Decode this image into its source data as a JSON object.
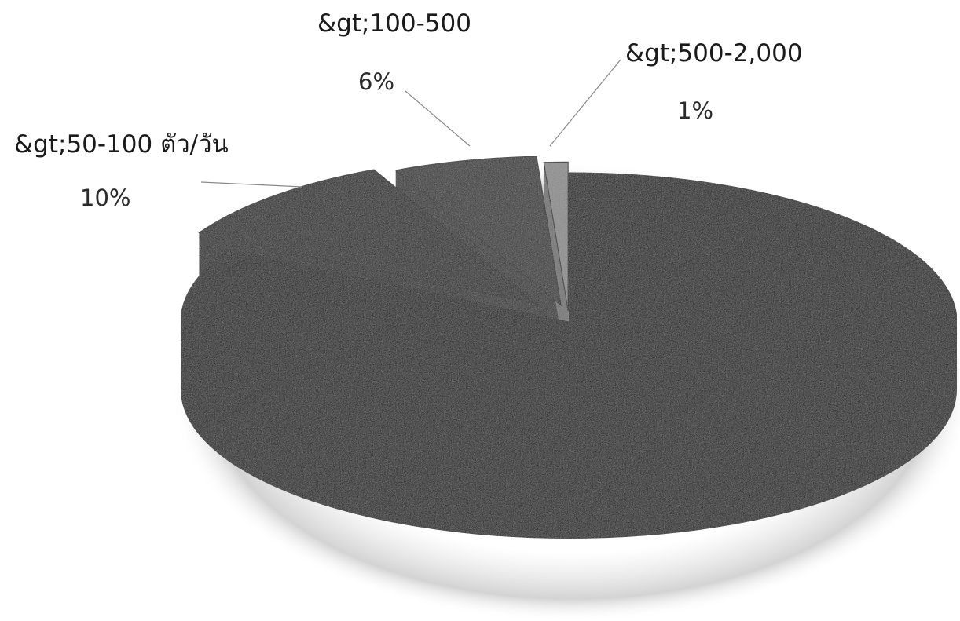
{
  "chart_data": {
    "type": "pie",
    "style": "3d-exploded",
    "slices": [
      {
        "label": "",
        "value": 83,
        "value_label": "",
        "color": "#050505"
      },
      {
        "label": "&gt;50-100 ตัว/วัน",
        "value": 10,
        "value_label": "10%",
        "color": "#1c1c1c"
      },
      {
        "label": "&gt;100-500",
        "value": 6,
        "value_label": "6%",
        "color": "#2e2e2e"
      },
      {
        "label": "&gt;500-2,000",
        "value": 1,
        "value_label": "1%",
        "color": "#8c8c8c"
      }
    ],
    "legend": "none"
  }
}
